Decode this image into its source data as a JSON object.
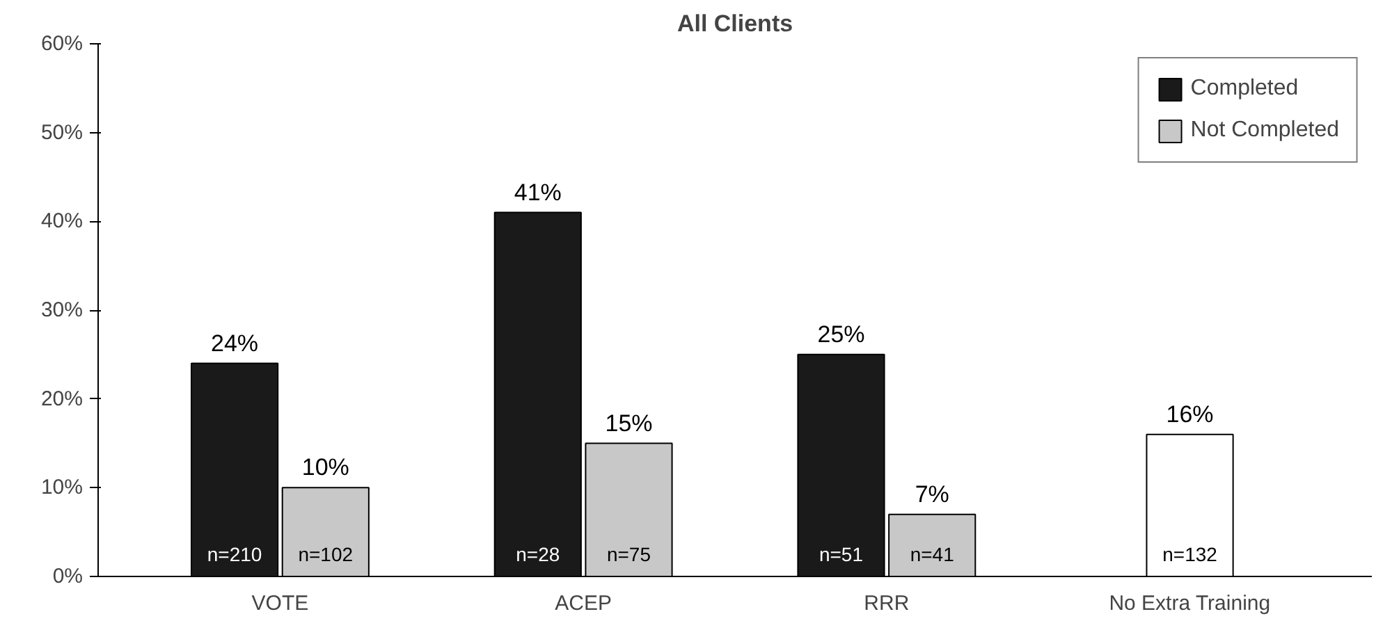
{
  "chart_data": {
    "type": "bar",
    "title": "All Clients",
    "categories": [
      "VOTE",
      "ACEP",
      "RRR",
      "No Extra Training"
    ],
    "series": [
      {
        "name": "Completed",
        "color": "#1a1a1a",
        "values": [
          24,
          41,
          25,
          null
        ],
        "value_labels": [
          "24%",
          "41%",
          "25%",
          null
        ]
      },
      {
        "name": "Not Completed",
        "color": "#c8c8c8",
        "values": [
          10,
          15,
          7,
          null
        ],
        "value_labels": [
          "10%",
          "15%",
          "7%",
          null
        ]
      },
      {
        "color": "#ffffff",
        "values": [
          null,
          null,
          null,
          16
        ],
        "value_labels": [
          null,
          null,
          null,
          "16%"
        ]
      }
    ],
    "annotations": [
      "n=210",
      "n=102",
      "n=28",
      "n=75",
      "n=51",
      "n=41",
      "n=132"
    ],
    "ylim": [
      0,
      60
    ],
    "yticks": [
      {
        "value": 0,
        "label": "0%"
      },
      {
        "value": 10,
        "label": "10%"
      },
      {
        "value": 20,
        "label": "20%"
      },
      {
        "value": 30,
        "label": "30%"
      },
      {
        "value": 40,
        "label": "40%"
      },
      {
        "value": 50,
        "label": "50%"
      },
      {
        "value": 60,
        "label": "60%"
      }
    ],
    "grid": false,
    "legend": "top right"
  }
}
